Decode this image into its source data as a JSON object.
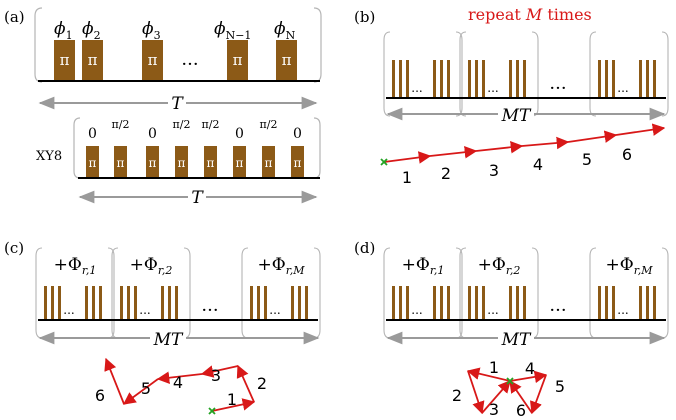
{
  "panel_labels": {
    "a": "(a)",
    "b": "(b)",
    "c": "(c)",
    "d": "(d)"
  },
  "panel_a": {
    "phases": [
      {
        "sym": "ϕ",
        "sub": "1"
      },
      {
        "sym": "ϕ",
        "sub": "2"
      },
      {
        "sym": "ϕ",
        "sub": "3"
      },
      {
        "sym": "ϕ",
        "sub": "N−1"
      },
      {
        "sym": "ϕ",
        "sub": "N"
      }
    ],
    "pulse_label": "π",
    "ellipsis": "···",
    "period_label": "T",
    "xy8": {
      "label": "XY8",
      "phases": [
        "0",
        "π/2",
        "0",
        "π/2",
        "π/2",
        "0",
        "π/2",
        "0"
      ],
      "pulse_label": "π",
      "period_label": "T"
    }
  },
  "panel_b": {
    "repeat_prefix": "repeat ",
    "repeat_var": "M",
    "repeat_suffix": " times",
    "ellipsis": "···",
    "dots": "...",
    "period_label": "MT",
    "path_labels": [
      "1",
      "2",
      "3",
      "4",
      "5",
      "6"
    ]
  },
  "panel_c": {
    "blocks": [
      {
        "prefix": "+Φ",
        "sub": "r,1"
      },
      {
        "prefix": "+Φ",
        "sub": "r,2"
      },
      {
        "prefix": "+Φ",
        "sub": "r,M"
      }
    ],
    "ellipsis": "···",
    "dots": "...",
    "period_label": "MT",
    "path_labels": [
      "1",
      "2",
      "3",
      "4",
      "5",
      "6"
    ]
  },
  "panel_d": {
    "blocks": [
      {
        "prefix": "+Φ",
        "sub": "r,1"
      },
      {
        "prefix": "+Φ",
        "sub": "r,2"
      },
      {
        "prefix": "+Φ",
        "sub": "r,M"
      }
    ],
    "ellipsis": "···",
    "dots": "...",
    "period_label": "MT",
    "path_labels": [
      "1",
      "2",
      "3",
      "4",
      "5",
      "6"
    ]
  },
  "colors": {
    "pulse": "#8c5a17",
    "arrow": "#d81818",
    "start": "#23a323",
    "axis": "#9a9a9a",
    "bracket": "#b5b5b5",
    "red_text": "#d81818"
  }
}
